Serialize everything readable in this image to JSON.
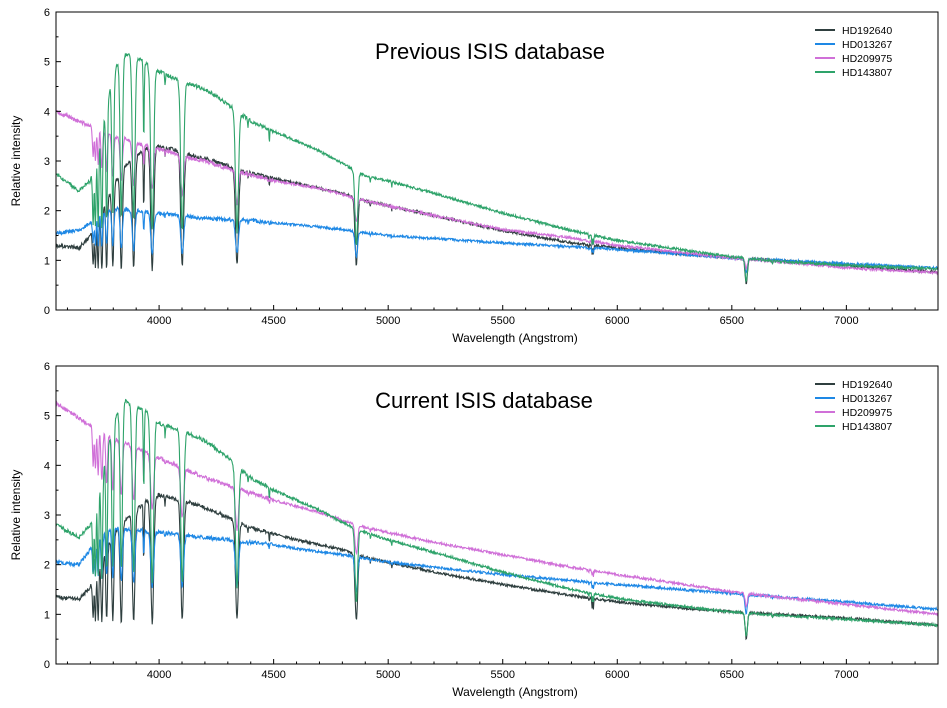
{
  "colors": {
    "HD192640": "#2f3f3f",
    "HD013267": "#1e88e5",
    "HD209975": "#d070d8",
    "HD143807": "#2ea36a"
  },
  "chart_data": [
    {
      "type": "line",
      "title": "Previous ISIS database",
      "xlabel": "Wavelength (Angstrom)",
      "ylabel": "Relative intensity",
      "xlim": [
        3550,
        7400
      ],
      "ylim": [
        0,
        6
      ],
      "xticks": [
        4000,
        4500,
        5000,
        5500,
        6000,
        6500,
        7000
      ],
      "yticks": [
        0,
        1,
        2,
        3,
        4,
        5,
        6
      ],
      "legend": "top-right",
      "series": [
        {
          "name": "HD192640",
          "x": [
            3550,
            3650,
            3700,
            3750,
            3800,
            3850,
            3900,
            3950,
            4000,
            4050,
            4100,
            4200,
            4300,
            4400,
            4500,
            4600,
            4700,
            4800,
            4900,
            5000,
            5200,
            5500,
            5800,
            6000,
            6300,
            6500,
            6700,
            7000,
            7200,
            7400
          ],
          "y": [
            1.3,
            1.25,
            1.5,
            2.0,
            2.5,
            2.9,
            3.1,
            3.25,
            3.3,
            3.25,
            3.15,
            3.05,
            2.9,
            2.75,
            2.65,
            2.55,
            2.45,
            2.35,
            2.2,
            2.1,
            1.9,
            1.6,
            1.35,
            1.25,
            1.12,
            1.05,
            1.0,
            0.9,
            0.82,
            0.76
          ]
        },
        {
          "name": "HD013267",
          "x": [
            3550,
            3650,
            3700,
            3750,
            3800,
            3900,
            4000,
            4100,
            4200,
            4300,
            4400,
            4500,
            4600,
            4800,
            5000,
            5500,
            6000,
            6500,
            7000,
            7400
          ],
          "y": [
            1.55,
            1.6,
            1.75,
            1.95,
            2.05,
            2.0,
            1.95,
            1.9,
            1.85,
            1.82,
            1.8,
            1.75,
            1.72,
            1.62,
            1.5,
            1.35,
            1.22,
            1.05,
            0.93,
            0.85
          ]
        },
        {
          "name": "HD209975",
          "x": [
            3550,
            3650,
            3700,
            3750,
            3800,
            3850,
            3900,
            4000,
            4100,
            4200,
            4300,
            4500,
            4700,
            4900,
            5000,
            5200,
            5500,
            5800,
            6000,
            6300,
            6500,
            7000,
            7400
          ],
          "y": [
            4.0,
            3.8,
            3.7,
            3.6,
            3.5,
            3.45,
            3.35,
            3.25,
            3.1,
            3.0,
            2.85,
            2.6,
            2.45,
            2.2,
            2.1,
            1.9,
            1.62,
            1.45,
            1.3,
            1.15,
            1.05,
            0.85,
            0.75
          ]
        },
        {
          "name": "HD143807",
          "x": [
            3550,
            3650,
            3700,
            3750,
            3800,
            3850,
            3900,
            3950,
            4000,
            4100,
            4200,
            4300,
            4400,
            4500,
            4600,
            4700,
            4800,
            4900,
            5000,
            5200,
            5500,
            5800,
            6000,
            6300,
            6500,
            6700,
            7000,
            7400
          ],
          "y": [
            2.75,
            2.4,
            2.6,
            3.6,
            4.8,
            5.15,
            5.1,
            4.95,
            4.8,
            4.6,
            4.45,
            4.15,
            3.8,
            3.6,
            3.4,
            3.2,
            2.95,
            2.7,
            2.6,
            2.35,
            1.95,
            1.6,
            1.4,
            1.2,
            1.07,
            0.98,
            0.9,
            0.83
          ]
        }
      ]
    },
    {
      "type": "line",
      "title": "Current ISIS database",
      "xlabel": "Wavelength (Angstrom)",
      "ylabel": "Relative intensity",
      "xlim": [
        3550,
        7400
      ],
      "ylim": [
        0,
        6
      ],
      "xticks": [
        4000,
        4500,
        5000,
        5500,
        6000,
        6500,
        7000
      ],
      "yticks": [
        0,
        1,
        2,
        3,
        4,
        5,
        6
      ],
      "legend": "top-right",
      "series": [
        {
          "name": "HD192640",
          "x": [
            3550,
            3650,
            3700,
            3750,
            3800,
            3850,
            3900,
            3950,
            4000,
            4050,
            4100,
            4200,
            4300,
            4400,
            4500,
            4600,
            4700,
            4800,
            4900,
            5000,
            5200,
            5500,
            5800,
            6000,
            6300,
            6500,
            6700,
            7000,
            7200,
            7400
          ],
          "y": [
            1.35,
            1.3,
            1.55,
            2.1,
            2.6,
            2.9,
            3.1,
            3.3,
            3.4,
            3.35,
            3.3,
            3.15,
            2.95,
            2.75,
            2.62,
            2.5,
            2.4,
            2.3,
            2.15,
            2.05,
            1.85,
            1.6,
            1.38,
            1.25,
            1.12,
            1.05,
            1.0,
            0.92,
            0.85,
            0.78
          ]
        },
        {
          "name": "HD013267",
          "x": [
            3550,
            3650,
            3700,
            3750,
            3800,
            3900,
            4000,
            4100,
            4200,
            4300,
            4400,
            4500,
            4600,
            4800,
            5000,
            5500,
            6000,
            6500,
            7000,
            7400
          ],
          "y": [
            2.05,
            2.0,
            2.3,
            2.6,
            2.75,
            2.7,
            2.65,
            2.6,
            2.55,
            2.5,
            2.45,
            2.4,
            2.32,
            2.2,
            2.05,
            1.8,
            1.6,
            1.42,
            1.25,
            1.1
          ]
        },
        {
          "name": "HD209975",
          "x": [
            3550,
            3650,
            3700,
            3750,
            3800,
            3850,
            3900,
            4000,
            4100,
            4200,
            4300,
            4500,
            4700,
            4900,
            5000,
            5200,
            5500,
            5800,
            6000,
            6300,
            6500,
            7000,
            7400
          ],
          "y": [
            5.25,
            4.95,
            4.8,
            4.65,
            4.55,
            4.45,
            4.35,
            4.15,
            3.95,
            3.75,
            3.6,
            3.3,
            3.05,
            2.75,
            2.65,
            2.45,
            2.2,
            1.95,
            1.8,
            1.6,
            1.45,
            1.2,
            1.0
          ]
        },
        {
          "name": "HD143807",
          "x": [
            3550,
            3650,
            3700,
            3750,
            3800,
            3850,
            3900,
            3950,
            4000,
            4100,
            4200,
            4300,
            4400,
            4500,
            4600,
            4700,
            4800,
            4900,
            5000,
            5200,
            5500,
            5800,
            6000,
            6300,
            6500,
            6700,
            7000,
            7400
          ],
          "y": [
            2.8,
            2.55,
            2.8,
            3.8,
            4.9,
            5.3,
            5.2,
            5.05,
            4.85,
            4.7,
            4.5,
            4.15,
            3.75,
            3.5,
            3.3,
            3.1,
            2.85,
            2.65,
            2.5,
            2.25,
            1.85,
            1.5,
            1.32,
            1.15,
            1.05,
            0.98,
            0.9,
            0.78
          ]
        }
      ]
    }
  ]
}
